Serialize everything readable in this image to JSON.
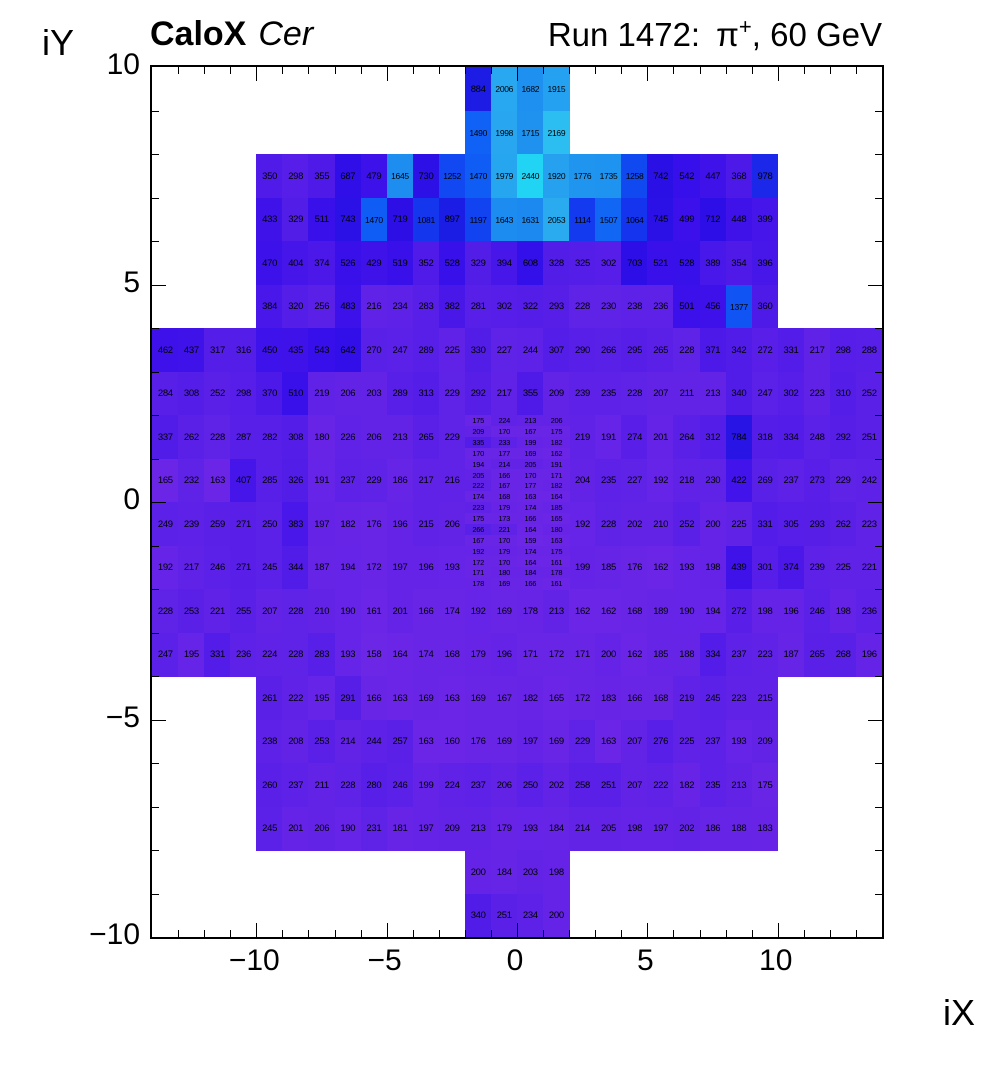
{
  "header": {
    "title_bold": "CaloX",
    "title_italic": "Cer",
    "run_label": "Run 1472:",
    "particle": "π",
    "charge": "+",
    "beam_suffix": ", 60 GeV"
  },
  "axes": {
    "x_title": "iX",
    "y_title": "iY"
  },
  "chart_data": {
    "type": "heatmap",
    "title": "CaloX Cer",
    "subtitle": "Run 1472: π+, 60 GeV",
    "xlabel": "iX",
    "ylabel": "iY",
    "xlim": [
      -14,
      14
    ],
    "ylim": [
      -10,
      10
    ],
    "grid": false,
    "x_ticks": [
      {
        "v": -10,
        "label": "−10"
      },
      {
        "v": -5,
        "label": "−5"
      },
      {
        "v": 0,
        "label": "0"
      },
      {
        "v": 5,
        "label": "5"
      },
      {
        "v": 10,
        "label": "10"
      }
    ],
    "y_ticks": [
      {
        "v": 10,
        "label": "10"
      },
      {
        "v": 5,
        "label": "5"
      },
      {
        "v": 0,
        "label": "0"
      },
      {
        "v": -5,
        "label": "−5"
      },
      {
        "v": -10,
        "label": "−10"
      }
    ],
    "palette": [
      [
        150,
        "#6c26e6"
      ],
      [
        260,
        "#5a20e8"
      ],
      [
        340,
        "#521ce8"
      ],
      [
        430,
        "#4012ea"
      ],
      [
        560,
        "#360fea"
      ],
      [
        710,
        "#2e0ee6"
      ],
      [
        890,
        "#1c1ce4"
      ],
      [
        990,
        "#1b28ea"
      ],
      [
        1090,
        "#1338ee"
      ],
      [
        1210,
        "#1244f0"
      ],
      [
        1480,
        "#0f5ef5"
      ],
      [
        1650,
        "#1e8ef0"
      ],
      [
        1790,
        "#2096f0"
      ],
      [
        1930,
        "#25a2f0"
      ],
      [
        2060,
        "#2aacf0"
      ],
      [
        2180,
        "#2cc0f0"
      ],
      [
        2440,
        "#22d4f4"
      ]
    ],
    "rows": [
      {
        "iy": 9,
        "segments": [
          {
            "x0": -2,
            "values": [
              884,
              2006,
              1682,
              1915
            ]
          }
        ]
      },
      {
        "iy": 8,
        "segments": [
          {
            "x0": -2,
            "values": [
              1490,
              1998,
              1715,
              2169
            ]
          }
        ]
      },
      {
        "iy": 7,
        "segments": [
          {
            "x0": -10,
            "values": [
              350,
              298,
              355,
              687,
              479,
              1645,
              730,
              1252,
              1470,
              1979,
              2440,
              1920,
              1776,
              1735,
              1258,
              742,
              542,
              447,
              368,
              978
            ]
          }
        ]
      },
      {
        "iy": 6,
        "segments": [
          {
            "x0": -10,
            "values": [
              433,
              329,
              511,
              743,
              1470,
              719,
              1081,
              897,
              1197,
              1643,
              1631,
              2053,
              1114,
              1507,
              1064,
              745,
              499,
              712,
              448,
              399
            ]
          }
        ]
      },
      {
        "iy": 5,
        "segments": [
          {
            "x0": -10,
            "values": [
              470,
              404,
              374,
              526,
              429,
              519,
              352,
              528,
              329,
              394,
              608,
              328,
              325,
              302,
              703,
              521,
              528,
              389,
              354,
              396
            ]
          }
        ]
      },
      {
        "iy": 4,
        "segments": [
          {
            "x0": -10,
            "values": [
              384,
              320,
              256,
              483,
              216,
              234,
              283,
              382,
              281,
              302,
              322,
              293,
              228,
              230,
              238,
              236,
              501,
              456,
              1377,
              360
            ]
          }
        ]
      },
      {
        "iy": 3,
        "segments": [
          {
            "x0": -14,
            "values": [
              462,
              437,
              317,
              316,
              450,
              435,
              543,
              642,
              270,
              247,
              289,
              225,
              330,
              227,
              244,
              307,
              290,
              266,
              295,
              265,
              228,
              371,
              342,
              272,
              331,
              217,
              298,
              288
            ]
          }
        ]
      },
      {
        "iy": 2,
        "segments": [
          {
            "x0": -14,
            "values": [
              284,
              308,
              252,
              298,
              370,
              510,
              219,
              206,
              203,
              289,
              313,
              229,
              292,
              217,
              355,
              209,
              239,
              235,
              228,
              207,
              211,
              213,
              340,
              247,
              302,
              223,
              310,
              252
            ]
          }
        ]
      },
      {
        "iy": 1,
        "segments": [
          {
            "x0": -14,
            "values": [
              337,
              262,
              228,
              287,
              282,
              308,
              180,
              226,
              206,
              213,
              265,
              229
            ]
          },
          {
            "x0": 2,
            "values": [
              219,
              191,
              274,
              201,
              264,
              312,
              784,
              318,
              334,
              248,
              292,
              251
            ]
          }
        ]
      },
      {
        "iy": 0,
        "segments": [
          {
            "x0": -14,
            "values": [
              165,
              232,
              163,
              407,
              285,
              326,
              191,
              237,
              229,
              186,
              217,
              216
            ]
          },
          {
            "x0": 2,
            "values": [
              204,
              235,
              227,
              192,
              218,
              230,
              422,
              269,
              237,
              273,
              229,
              242
            ]
          }
        ]
      },
      {
        "iy": -1,
        "segments": [
          {
            "x0": -14,
            "values": [
              249,
              239,
              259,
              271,
              250,
              383,
              197,
              182,
              176,
              196,
              215,
              206
            ]
          },
          {
            "x0": 2,
            "values": [
              192,
              228,
              202,
              210,
              252,
              200,
              225,
              331,
              305,
              293,
              262,
              223
            ]
          }
        ]
      },
      {
        "iy": -2,
        "segments": [
          {
            "x0": -14,
            "values": [
              192,
              217,
              246,
              271,
              245,
              344,
              187,
              194,
              172,
              197,
              196,
              193
            ]
          },
          {
            "x0": 2,
            "values": [
              199,
              185,
              176,
              162,
              193,
              198,
              439,
              301,
              374,
              239,
              225,
              221
            ]
          }
        ]
      },
      {
        "iy": -3,
        "segments": [
          {
            "x0": -14,
            "values": [
              228,
              253,
              221,
              255,
              207,
              228,
              210,
              190,
              161,
              201,
              166,
              174,
              192,
              169,
              178,
              213,
              162,
              162,
              168,
              189,
              190,
              194,
              272,
              198,
              196,
              246,
              198,
              236
            ]
          }
        ]
      },
      {
        "iy": -4,
        "segments": [
          {
            "x0": -14,
            "values": [
              247,
              195,
              331,
              236,
              224,
              228,
              283,
              193,
              158,
              164,
              174,
              168,
              179,
              196,
              171,
              172,
              171,
              200,
              162,
              185,
              188,
              334,
              237,
              223,
              187,
              265,
              268,
              196
            ]
          }
        ]
      },
      {
        "iy": -5,
        "segments": [
          {
            "x0": -10,
            "values": [
              261,
              222,
              195,
              291,
              166,
              163,
              169,
              163,
              169,
              167,
              182,
              165,
              172,
              183,
              166,
              168,
              219,
              245,
              223,
              215
            ]
          }
        ]
      },
      {
        "iy": -6,
        "segments": [
          {
            "x0": -10,
            "values": [
              238,
              208,
              253,
              214,
              244,
              257,
              163,
              160,
              176,
              169,
              197,
              169,
              229,
              163,
              207,
              276,
              225,
              237,
              193,
              209
            ]
          }
        ]
      },
      {
        "iy": -7,
        "segments": [
          {
            "x0": -10,
            "values": [
              260,
              237,
              211,
              228,
              280,
              246,
              199,
              224,
              237,
              206,
              250,
              202,
              258,
              251,
              207,
              222,
              182,
              235,
              213,
              175
            ]
          }
        ]
      },
      {
        "iy": -8,
        "segments": [
          {
            "x0": -10,
            "values": [
              245,
              201,
              206,
              190,
              231,
              181,
              197,
              209,
              213,
              179,
              193,
              184,
              214,
              205,
              198,
              197,
              202,
              186,
              188,
              183
            ]
          }
        ]
      },
      {
        "iy": -9,
        "segments": [
          {
            "x0": -2,
            "values": [
              200,
              184,
              203,
              198
            ]
          }
        ]
      },
      {
        "iy": -10,
        "segments": [
          {
            "x0": -2,
            "values": [
              340,
              251,
              234,
              200
            ]
          }
        ]
      }
    ],
    "fine_grid": {
      "x0": -2,
      "y_top": 2,
      "cols": 4,
      "sub_rows": 16,
      "values": [
        [
          175,
          224,
          213,
          206
        ],
        [
          209,
          170,
          167,
          175
        ],
        [
          335,
          233,
          199,
          182
        ],
        [
          170,
          177,
          169,
          162
        ],
        [
          194,
          214,
          205,
          191
        ],
        [
          205,
          166,
          170,
          171
        ],
        [
          222,
          167,
          177,
          182
        ],
        [
          174,
          168,
          163,
          164
        ],
        [
          223,
          179,
          174,
          185
        ],
        [
          175,
          173,
          166,
          165
        ],
        [
          266,
          221,
          164,
          180
        ],
        [
          167,
          170,
          159,
          163
        ],
        [
          192,
          179,
          174,
          175
        ],
        [
          172,
          170,
          164,
          161
        ],
        [
          171,
          180,
          184,
          178
        ],
        [
          178,
          169,
          166,
          161
        ]
      ]
    }
  }
}
